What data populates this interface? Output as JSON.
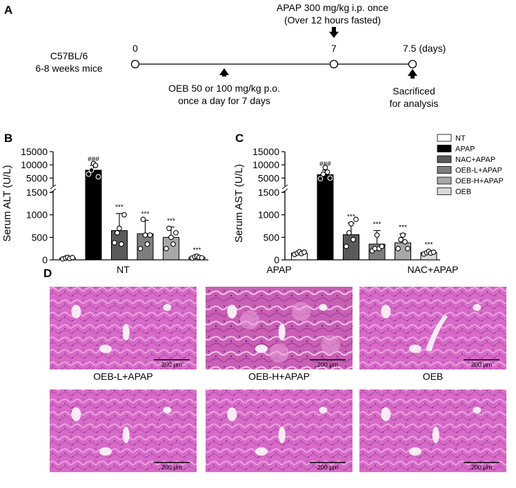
{
  "panels": {
    "A": "A",
    "B": "B",
    "C": "C",
    "D": "D"
  },
  "timeline": {
    "mice_line1": "C57BL/6",
    "mice_line2": "6-8 weeks mice",
    "ticks": [
      "0",
      "7",
      "7.5 (days)"
    ],
    "apap_line1": "APAP 300 mg/kg i.p. once",
    "apap_line2": "(Over 12 hours fasted)",
    "oeb_line1": "OEB 50 or 100 mg/kg p.o.",
    "oeb_line2": "once a day for 7 days",
    "sac_line1": "Sacrificed",
    "sac_line2": "for analysis"
  },
  "legend": {
    "items": [
      {
        "label": "NT",
        "color": "#ffffff"
      },
      {
        "label": "APAP",
        "color": "#000000"
      },
      {
        "label": "NAC+APAP",
        "color": "#5a5a5a"
      },
      {
        "label": "OEB-L+APAP",
        "color": "#7e7e7e"
      },
      {
        "label": "OEB-H+APAP",
        "color": "#a8a8a8"
      },
      {
        "label": "OEB",
        "color": "#d9d9d9"
      }
    ]
  },
  "chart_data": [
    {
      "type": "bar",
      "panel": "B",
      "ylabel": "Serum ALT (U/L)",
      "categories": [
        "NT",
        "APAP",
        "NAC+APAP",
        "OEB-L+APAP",
        "OEB-H+APAP",
        "OEB"
      ],
      "values": [
        40,
        8000,
        650,
        580,
        500,
        60
      ],
      "errors": [
        15,
        1800,
        380,
        300,
        230,
        20
      ],
      "points": [
        [
          20,
          40,
          55,
          30,
          50
        ],
        [
          6500,
          8000,
          10500,
          9800,
          5500
        ],
        [
          380,
          600,
          700,
          350,
          1000
        ],
        [
          250,
          900,
          550,
          350,
          550
        ],
        [
          250,
          700,
          500,
          350,
          600
        ],
        [
          40,
          70,
          80,
          55,
          45
        ]
      ],
      "annotations": [
        "",
        "###",
        "***",
        "***",
        "***",
        "***"
      ],
      "y_lower_ticks": [
        "0",
        "500",
        "1000",
        "1500"
      ],
      "y_upper_ticks": [
        "5000",
        "10000",
        "15000"
      ],
      "y_lower_range": [
        0,
        1500
      ],
      "y_upper_range": [
        2500,
        15000
      ]
    },
    {
      "type": "bar",
      "panel": "C",
      "ylabel": "Serum AST (U/L)",
      "categories": [
        "NT",
        "APAP",
        "NAC+APAP",
        "OEB-L+APAP",
        "OEB-H+APAP",
        "OEB"
      ],
      "values": [
        150,
        6300,
        560,
        350,
        380,
        160
      ],
      "errors": [
        40,
        1700,
        260,
        300,
        200,
        40
      ],
      "points": [
        [
          120,
          150,
          180,
          140,
          170
        ],
        [
          4800,
          6500,
          9000,
          7300,
          5000
        ],
        [
          300,
          600,
          800,
          450,
          900
        ],
        [
          200,
          250,
          550,
          250,
          300
        ],
        [
          250,
          450,
          550,
          400,
          250
        ],
        [
          130,
          160,
          190,
          150,
          170
        ]
      ],
      "annotations": [
        "",
        "###",
        "***",
        "***",
        "***",
        "***"
      ],
      "y_lower_ticks": [
        "0",
        "500",
        "1000",
        "1500"
      ],
      "y_upper_ticks": [
        "5000",
        "10000",
        "15000"
      ],
      "y_lower_range": [
        0,
        1500
      ],
      "y_upper_range": [
        2500,
        15000
      ]
    }
  ],
  "histology": {
    "images": [
      {
        "title": "NT",
        "scale": "200 μm"
      },
      {
        "title": "APAP",
        "scale": "200 μm"
      },
      {
        "title": "NAC+APAP",
        "scale": "200 μm"
      },
      {
        "title": "OEB-L+APAP",
        "scale": "200 μm"
      },
      {
        "title": "OEB-H+APAP",
        "scale": "200 μm"
      },
      {
        "title": "OEB",
        "scale": "200 μm"
      }
    ]
  }
}
